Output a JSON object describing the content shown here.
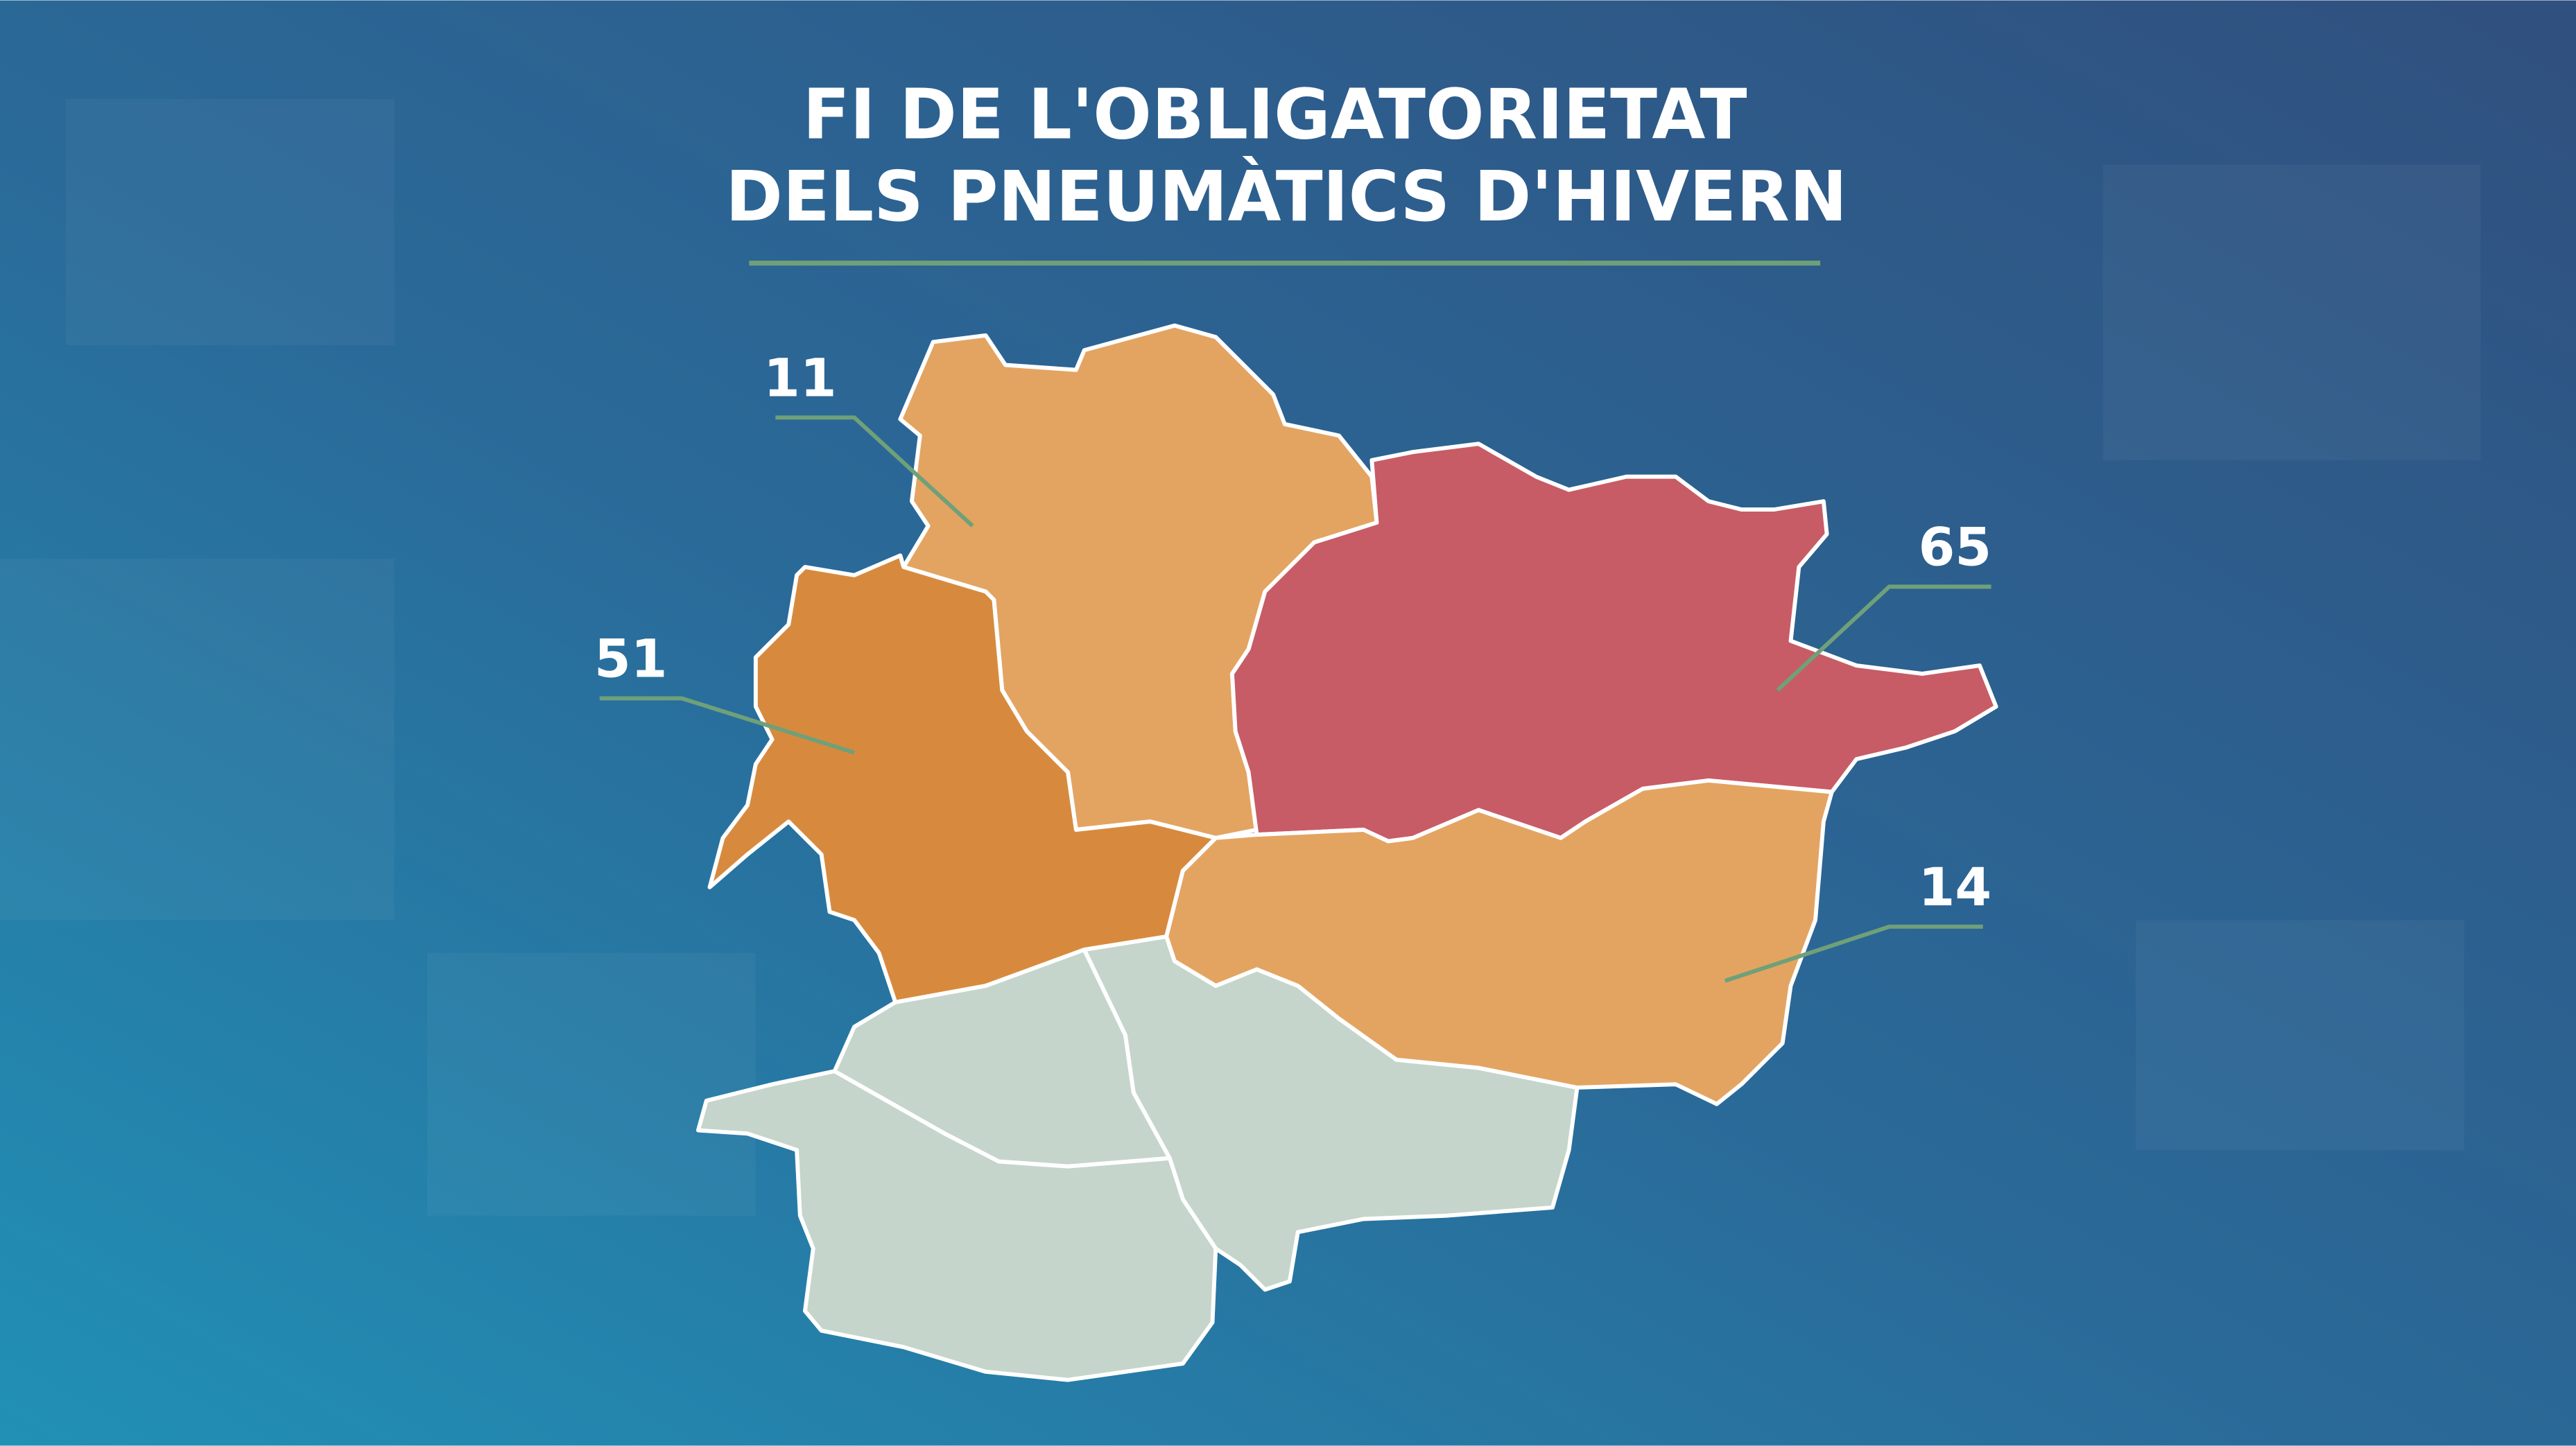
{
  "title": {
    "line1": "FI DE L'OBLIGATORIETAT",
    "line2": "DELS PNEUMÀTICS D'HIVERN"
  },
  "labels": [
    11,
    51,
    65,
    14
  ]
}
